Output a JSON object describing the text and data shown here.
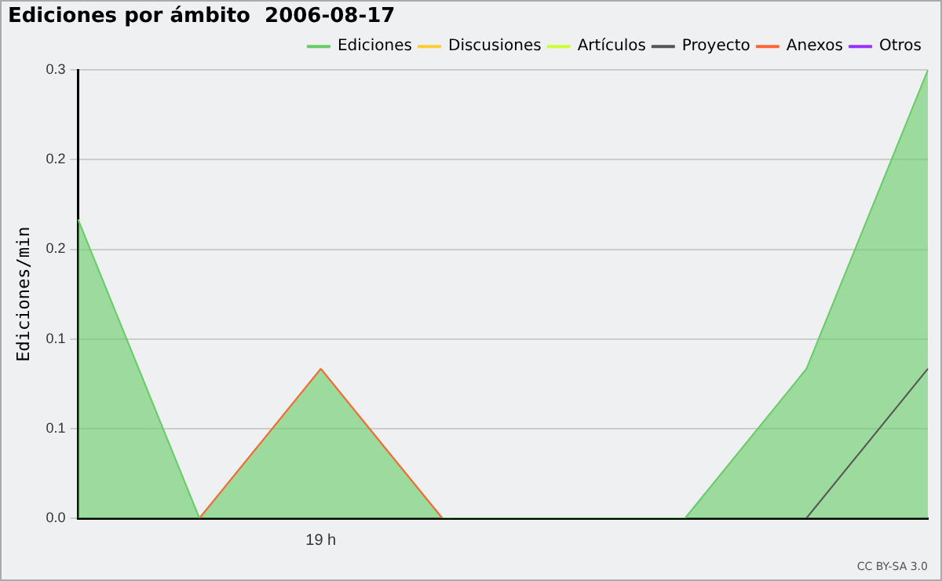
{
  "chart_data": {
    "type": "line",
    "title": "Ediciones por ámbito  2006-08-17",
    "ylabel": "Ediciones/min",
    "categories": [
      null,
      null,
      "19 h",
      null,
      null,
      null,
      null,
      null
    ],
    "series": [
      {
        "name": "Ediciones",
        "type": "area",
        "color": "#66cc66",
        "values": [
          0.2,
          0,
          0.1,
          0,
          0,
          0,
          0.1,
          0.3
        ]
      },
      {
        "name": "Discusiones",
        "color": "#ffcc33",
        "values": [
          null,
          null,
          null,
          null,
          null,
          null,
          null,
          null
        ]
      },
      {
        "name": "Artículos",
        "color": "#ccff33",
        "values": [
          null,
          null,
          null,
          null,
          null,
          null,
          null,
          null
        ]
      },
      {
        "name": "Proyecto",
        "color": "#555555",
        "values": [
          null,
          null,
          null,
          null,
          null,
          null,
          0,
          0.1
        ]
      },
      {
        "name": "Anexos",
        "color": "#ff6633",
        "values": [
          null,
          0,
          0.1,
          0,
          null,
          null,
          null,
          null
        ]
      },
      {
        "name": "Otros",
        "color": "#9933ff",
        "values": [
          null,
          null,
          null,
          null,
          null,
          null,
          null,
          null
        ]
      }
    ],
    "ylim": [
      0,
      0.3
    ],
    "yticks": [
      {
        "value": 0,
        "label": "0.0"
      },
      {
        "value": 0.06,
        "label": "0.1"
      },
      {
        "value": 0.12,
        "label": "0.1"
      },
      {
        "value": 0.18,
        "label": "0.2"
      },
      {
        "value": 0.24,
        "label": "0.2"
      },
      0.3
    ],
    "grid": "y",
    "legend": "top right",
    "marker": "none",
    "annotations": [
      "CC BY-SA 3.0"
    ]
  }
}
